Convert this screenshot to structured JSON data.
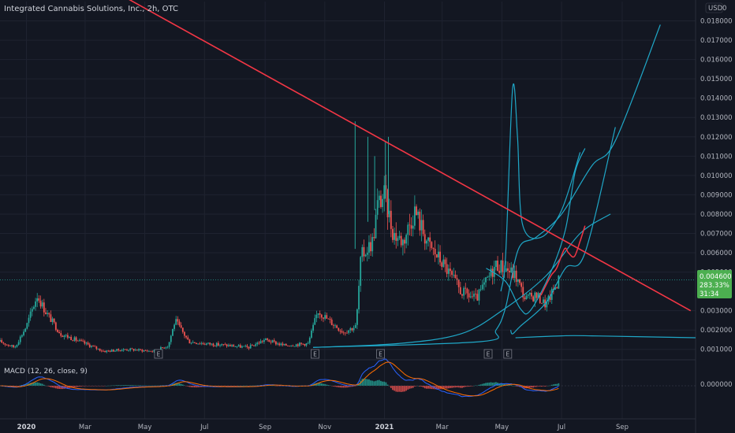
{
  "title": "Integrated Cannabis Solutions, Inc., 2h, OTC",
  "currency": "USD",
  "price_axis_labels": [
    "0.018000",
    "0.017000",
    "0.016000",
    "0.015000",
    "0.014000",
    "0.013000",
    "0.012000",
    "0.011000",
    "0.010000",
    "0.009000",
    "0.008000",
    "0.007000",
    "0.006000",
    "0.005000",
    "0.003000",
    "0.002000",
    "0.001000"
  ],
  "top_label": "0",
  "price_tag": {
    "price": "0.004600",
    "change": "283.33%",
    "countdown": "31:34"
  },
  "macd": {
    "label": "MACD (12, 26, close, 9)",
    "axis_label": "0.000000"
  },
  "x_labels": [
    "2020",
    "Mar",
    "May",
    "Jul",
    "Sep",
    "Nov",
    "2021",
    "Mar",
    "May",
    "Jul",
    "Sep"
  ],
  "earnings_label": "E",
  "colors": {
    "background": "#131722",
    "grid": "#1f2330",
    "up": "#26a69a",
    "down": "#ef5350",
    "trendline": "#f23645",
    "projection": "#1fa7c7",
    "macd_line": "#2962ff",
    "signal_line": "#ff6d00",
    "tag": "#4caf50"
  },
  "chart_data": {
    "type": "candlestick",
    "title": "Integrated Cannabis Solutions, Inc., 2h, OTC",
    "ylim": [
      0.0005,
      0.019
    ],
    "y_ticks": [
      0.001,
      0.002,
      0.003,
      0.005,
      0.006,
      0.007,
      0.008,
      0.009,
      0.01,
      0.011,
      0.012,
      0.013,
      0.014,
      0.015,
      0.016,
      0.017,
      0.018
    ],
    "x_range": [
      "2019-12-05",
      "2021-11-15"
    ],
    "x_ticks": [
      [
        "2020",
        "2020-01-01"
      ],
      [
        "Mar",
        "2020-03-01"
      ],
      [
        "May",
        "2020-05-01"
      ],
      [
        "Jul",
        "2020-07-01"
      ],
      [
        "Sep",
        "2020-09-01"
      ],
      [
        "Nov",
        "2020-11-01"
      ],
      [
        "2021",
        "2021-01-01"
      ],
      [
        "Mar",
        "2021-03-01"
      ],
      [
        "May",
        "2021-05-01"
      ],
      [
        "Jul",
        "2021-07-01"
      ],
      [
        "Sep",
        "2021-09-01"
      ]
    ],
    "earnings_markers": [
      "2020-05-15",
      "2020-10-22",
      "2020-12-28",
      "2021-04-17",
      "2021-05-07"
    ],
    "price_path": [
      [
        "2019-12-05",
        0.0014
      ],
      [
        "2019-12-20",
        0.0011
      ],
      [
        "2020-01-01",
        0.0022
      ],
      [
        "2020-01-12",
        0.0038
      ],
      [
        "2020-01-20",
        0.003
      ],
      [
        "2020-02-05",
        0.0018
      ],
      [
        "2020-03-01",
        0.0013
      ],
      [
        "2020-03-20",
        0.0009
      ],
      [
        "2020-04-15",
        0.001
      ],
      [
        "2020-05-10",
        0.0009
      ],
      [
        "2020-05-25",
        0.0012
      ],
      [
        "2020-06-01",
        0.0025
      ],
      [
        "2020-06-15",
        0.0014
      ],
      [
        "2020-07-01",
        0.0013
      ],
      [
        "2020-07-25",
        0.0012
      ],
      [
        "2020-08-15",
        0.0011
      ],
      [
        "2020-09-01",
        0.0015
      ],
      [
        "2020-09-20",
        0.0012
      ],
      [
        "2020-10-15",
        0.0013
      ],
      [
        "2020-10-25",
        0.003
      ],
      [
        "2020-11-05",
        0.0025
      ],
      [
        "2020-11-20",
        0.0019
      ],
      [
        "2020-12-03",
        0.0022
      ],
      [
        "2020-12-08",
        0.0058
      ],
      [
        "2020-12-20",
        0.0066
      ],
      [
        "2020-12-25",
        0.0085
      ],
      [
        "2021-01-01",
        0.009
      ],
      [
        "2021-01-10",
        0.007
      ],
      [
        "2021-01-20",
        0.0066
      ],
      [
        "2021-02-01",
        0.0082
      ],
      [
        "2021-02-15",
        0.0064
      ],
      [
        "2021-03-01",
        0.0055
      ],
      [
        "2021-03-20",
        0.004
      ],
      [
        "2021-04-05",
        0.0036
      ],
      [
        "2021-04-25",
        0.0054
      ],
      [
        "2021-05-05",
        0.0052
      ],
      [
        "2021-05-15",
        0.0048
      ],
      [
        "2021-05-25",
        0.0036
      ],
      [
        "2021-06-05",
        0.0038
      ],
      [
        "2021-06-15",
        0.0033
      ],
      [
        "2021-06-28",
        0.0046
      ]
    ],
    "spikes": [
      [
        "2020-12-02",
        0.0062,
        0.0128
      ],
      [
        "2020-12-15",
        0.0076,
        0.012
      ],
      [
        "2020-12-22",
        0.0082,
        0.011
      ],
      [
        "2021-01-02",
        0.0088,
        0.0118
      ],
      [
        "2021-01-05",
        0.008,
        0.012
      ]
    ],
    "trendline": [
      [
        "2020-04-01",
        0.0195
      ],
      [
        "2021-11-10",
        0.003
      ]
    ],
    "projection_paths": [
      [
        [
          "2020-10-20",
          0.0011
        ],
        [
          "2021-01-15",
          0.0013
        ],
        [
          "2021-03-20",
          0.0018
        ],
        [
          "2021-05-01",
          0.003
        ],
        [
          "2021-06-15",
          0.0048
        ],
        [
          "2021-07-20",
          0.007
        ],
        [
          "2021-08-20",
          0.008
        ]
      ],
      [
        [
          "2020-10-20",
          0.0011
        ],
        [
          "2021-04-10",
          0.0014
        ],
        [
          "2021-04-25",
          0.002
        ],
        [
          "2021-05-05",
          0.0032
        ],
        [
          "2021-05-18",
          0.0062
        ],
        [
          "2021-06-05",
          0.0068
        ],
        [
          "2021-07-01",
          0.008
        ],
        [
          "2021-08-01",
          0.0105
        ],
        [
          "2021-08-25",
          0.0118
        ],
        [
          "2021-10-10",
          0.0178
        ]
      ],
      [
        [
          "2021-05-10",
          0.002
        ],
        [
          "2021-05-12",
          0.0018
        ],
        [
          "2021-05-20",
          0.0022
        ],
        [
          "2021-06-15",
          0.0034
        ],
        [
          "2021-07-05",
          0.0052
        ],
        [
          "2021-07-25",
          0.006
        ],
        [
          "2021-08-25",
          0.0125
        ]
      ],
      [
        [
          "2021-04-30",
          0.004
        ],
        [
          "2021-05-05",
          0.006
        ],
        [
          "2021-05-12",
          0.0145
        ],
        [
          "2021-05-17",
          0.012
        ],
        [
          "2021-05-22",
          0.0075
        ],
        [
          "2021-06-10",
          0.0068
        ],
        [
          "2021-07-01",
          0.0082
        ],
        [
          "2021-07-20",
          0.0112
        ]
      ],
      [
        [
          "2021-04-15",
          0.0052
        ],
        [
          "2021-05-05",
          0.0045
        ],
        [
          "2021-05-20",
          0.0031
        ],
        [
          "2021-05-30",
          0.003
        ],
        [
          "2021-06-20",
          0.005
        ],
        [
          "2021-07-05",
          0.0072
        ],
        [
          "2021-07-15",
          0.0102
        ],
        [
          "2021-07-25",
          0.0114
        ]
      ],
      [
        [
          "2021-05-15",
          0.0016
        ],
        [
          "2021-07-01",
          0.0017
        ],
        [
          "2021-08-01",
          0.0017
        ],
        [
          "2021-11-15",
          0.0016
        ]
      ]
    ],
    "red_projection": [
      [
        "2021-06-10",
        0.0038
      ],
      [
        "2021-06-20",
        0.0048
      ],
      [
        "2021-06-26",
        0.0052
      ],
      [
        "2021-07-04",
        0.0062
      ],
      [
        "2021-07-08",
        0.006
      ],
      [
        "2021-07-14",
        0.0058
      ],
      [
        "2021-07-20",
        0.0066
      ],
      [
        "2021-07-25",
        0.0074
      ]
    ],
    "last_price": 0.0046
  }
}
